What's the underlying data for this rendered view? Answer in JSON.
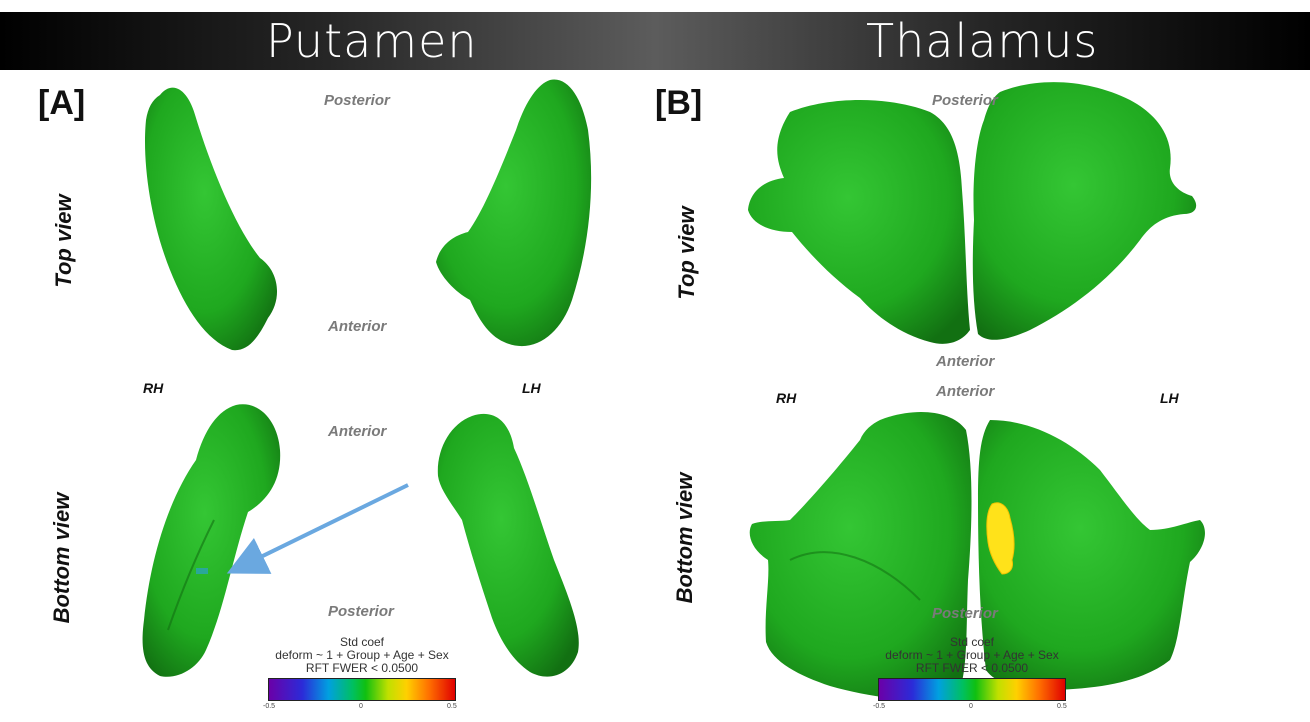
{
  "header": {
    "left_title": "Putamen",
    "right_title": "Thalamus"
  },
  "panels": {
    "a": {
      "label": "[A]",
      "top_view": "Top view",
      "bottom_view": "Bottom view",
      "top_posterior": "Posterior",
      "top_anterior": "Anterior",
      "bottom_anterior": "Anterior",
      "bottom_posterior": "Posterior",
      "rh": "RH",
      "lh": "LH"
    },
    "b": {
      "label": "[B]",
      "top_view": "Top view",
      "bottom_view": "Bottom view",
      "top_posterior": "Posterior",
      "top_anterior": "Anterior",
      "bottom_anterior": "Anterior",
      "bottom_posterior": "Posterior",
      "rh": "RH",
      "lh": "LH"
    }
  },
  "legend": {
    "title": "Std coef",
    "model": "deform ~ 1 + Group  + Age + Sex",
    "threshold": "RFT FWER < 0.0500",
    "ticks": [
      "-0.5",
      "0",
      "0.5"
    ]
  },
  "colors": {
    "surface": "#1fa81f",
    "surface_shadow": "#127012",
    "highlight": "#ffe21a",
    "arrow": "#6aa8e0"
  }
}
